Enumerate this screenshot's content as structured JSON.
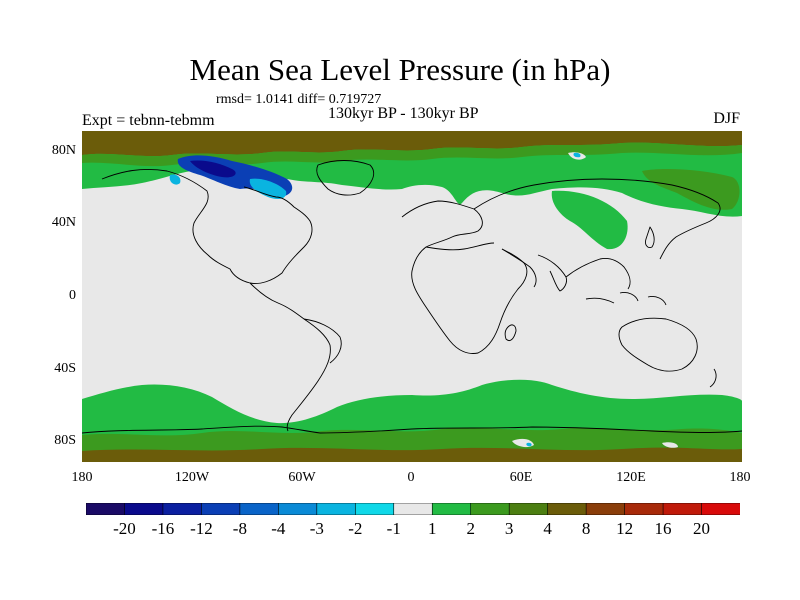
{
  "title": "Mean Sea Level Pressure (in hPa)",
  "stats": "rmsd= 1.0141 diff= 0.719727",
  "expt": "Expt = tebnn-tebmm",
  "subtitle": "130kyr BP - 130kyr BP",
  "season": "DJF",
  "lat_labels": [
    "80N",
    "40N",
    "0",
    "40S",
    "80S"
  ],
  "lon_labels": [
    "180",
    "120W",
    "60W",
    "0",
    "60E",
    "120E",
    "180"
  ],
  "colorbar": {
    "labels": [
      "-20",
      "-16",
      "-12",
      "-8",
      "-4",
      "-3",
      "-2",
      "-1",
      "1",
      "2",
      "3",
      "4",
      "8",
      "12",
      "16",
      "20"
    ],
    "colors": [
      "#1a0a66",
      "#0a0a8c",
      "#0b1fa0",
      "#0b3fb5",
      "#0a64c8",
      "#0a8ad6",
      "#0ab4e0",
      "#10d8e8",
      "#e8e8e8",
      "#22bb44",
      "#3c9a1f",
      "#4c7f12",
      "#6b5c0a",
      "#8a3e0a",
      "#a82a0a",
      "#c01a0a",
      "#d80a0a"
    ]
  },
  "palette": {
    "land_ocean_bg": "#e8e8e8",
    "green": "#22bb44",
    "dark_green": "#3c9a1f",
    "olive": "#6b5c0a",
    "blue": "#0b3fb5",
    "dark_blue": "#0a0a8c",
    "cyan": "#0ab4e0",
    "coast": "#000000"
  }
}
